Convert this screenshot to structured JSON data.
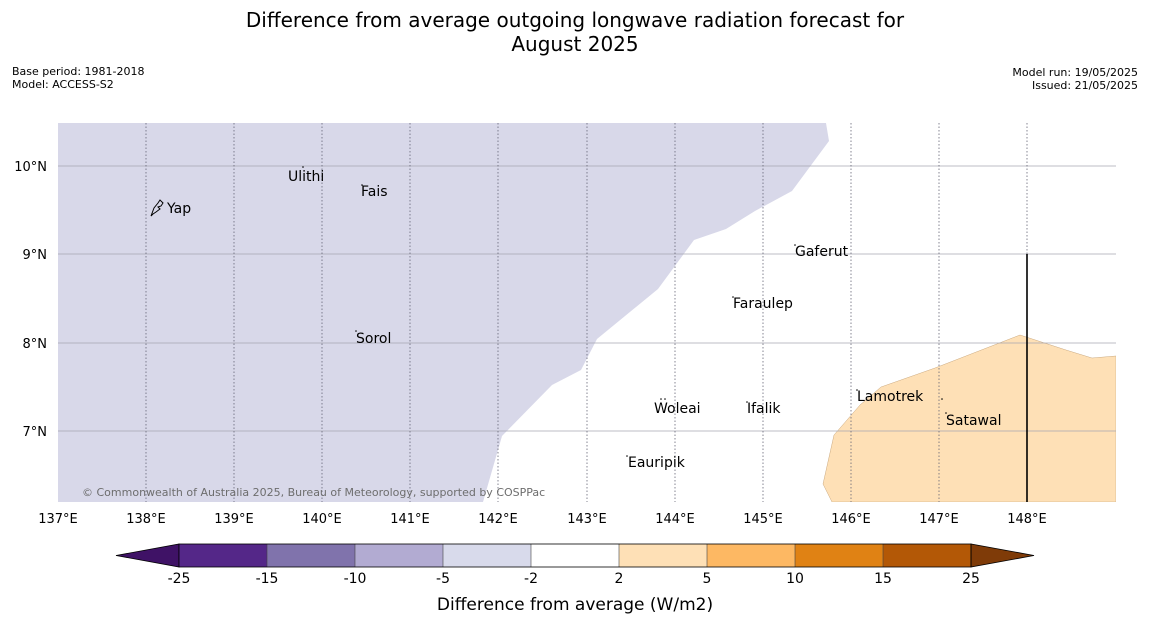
{
  "header": {
    "title_line1": "Difference from average outgoing longwave radiation forecast for",
    "title_line2": "August 2025",
    "base_period": "Base period: 1981-2018",
    "model": "Model: ACCESS-S2",
    "model_run": "Model run: 19/05/2025",
    "issued": "Issued: 21/05/2025"
  },
  "map": {
    "lon_labels": [
      "137°E",
      "138°E",
      "139°E",
      "140°E",
      "141°E",
      "142°E",
      "143°E",
      "144°E",
      "145°E",
      "146°E",
      "147°E",
      "148°E"
    ],
    "lat_labels": [
      "10°N",
      "9°N",
      "8°N",
      "7°N"
    ],
    "places": [
      {
        "name": "Ulithi"
      },
      {
        "name": "Fais"
      },
      {
        "name": "Yap"
      },
      {
        "name": "Gaferut"
      },
      {
        "name": "Faraulep"
      },
      {
        "name": "Sorol"
      },
      {
        "name": "Lamotrek"
      },
      {
        "name": "Woleai"
      },
      {
        "name": "Ifalik"
      },
      {
        "name": "Satawal"
      },
      {
        "name": "Eauripik"
      }
    ],
    "copyright": "© Commonwealth of Australia 2025, Bureau of Meteorology, supported by COSPPac",
    "colors": {
      "below_-2": "#d8d8e9",
      "neutral": "#ffffff",
      "above_2": "#fee0b6"
    }
  },
  "legend": {
    "title": "Difference from average (W/m2)",
    "ticks": [
      "-25",
      "-15",
      "-10",
      "-5",
      "-2",
      "2",
      "5",
      "10",
      "15",
      "25"
    ],
    "colors": [
      "#3f1266",
      "#542788",
      "#8073ac",
      "#b2abd2",
      "#d8daeb",
      "#ffffff",
      "#fee0b6",
      "#fdb863",
      "#e08214",
      "#b35806",
      "#7f3b08"
    ]
  }
}
